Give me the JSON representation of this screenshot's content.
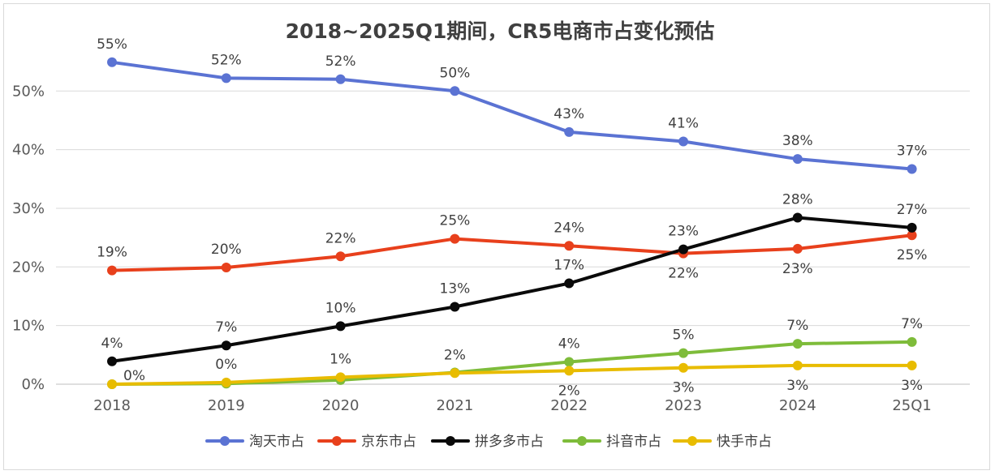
{
  "chart_data": {
    "type": "line",
    "title": "2018~2025Q1期间，CR5电商市占变化预估",
    "xlabel": "",
    "ylabel": "",
    "categories": [
      "2018",
      "2019",
      "2020",
      "2021",
      "2022",
      "2023",
      "2024",
      "25Q1"
    ],
    "ylim": [
      0,
      55
    ],
    "yticks": [
      0,
      10,
      20,
      30,
      40,
      50
    ],
    "ytick_labels": [
      "0%",
      "10%",
      "20%",
      "30%",
      "40%",
      "50%"
    ],
    "grid": "horizontal",
    "legend": "bottom",
    "series": [
      {
        "name": "淘天市占",
        "color": "#5b73d3",
        "values": [
          54.9,
          52.2,
          52.0,
          50.0,
          43.0,
          41.4,
          38.4,
          36.7
        ],
        "labels": [
          "55%",
          "52%",
          "52%",
          "50%",
          "43%",
          "41%",
          "38%",
          "37%"
        ],
        "label_pos": [
          "above",
          "above",
          "above",
          "above",
          "above",
          "above",
          "above",
          "above"
        ]
      },
      {
        "name": "京东市占",
        "color": "#e8401c",
        "values": [
          19.4,
          19.9,
          21.8,
          24.8,
          23.6,
          22.3,
          23.1,
          25.4
        ],
        "labels": [
          "19%",
          "20%",
          "22%",
          "25%",
          "24%",
          "22%",
          "23%",
          "25%"
        ],
        "label_pos": [
          "above",
          "above",
          "above",
          "above",
          "above",
          "below",
          "below",
          "below"
        ]
      },
      {
        "name": "拼多多市占",
        "color": "#0a0a0a",
        "values": [
          3.9,
          6.6,
          9.9,
          13.2,
          17.2,
          23.0,
          28.4,
          26.7
        ],
        "labels": [
          "4%",
          "7%",
          "10%",
          "13%",
          "17%",
          "23%",
          "28%",
          "27%"
        ],
        "label_pos": [
          "above",
          "above",
          "above",
          "above",
          "above",
          "above",
          "above",
          "above"
        ]
      },
      {
        "name": "抖音市占",
        "color": "#7ebc3a",
        "values": [
          0.0,
          0.1,
          0.7,
          2.0,
          3.8,
          5.3,
          6.9,
          7.2
        ],
        "labels": [
          "",
          "",
          "",
          "",
          "4%",
          "5%",
          "7%",
          "7%"
        ],
        "label_pos": [
          "above",
          "above",
          "above",
          "above",
          "above",
          "above",
          "above",
          "above"
        ]
      },
      {
        "name": "快手市占",
        "color": "#e8bc00",
        "values": [
          0.0,
          0.3,
          1.2,
          1.9,
          2.3,
          2.8,
          3.2,
          3.2
        ],
        "labels": [
          "0%",
          "0%",
          "1%",
          "2%",
          "2%",
          "3%",
          "3%",
          "3%"
        ],
        "label_pos": [
          "right",
          "above",
          "above",
          "above",
          "below",
          "below",
          "below",
          "below"
        ]
      }
    ]
  }
}
